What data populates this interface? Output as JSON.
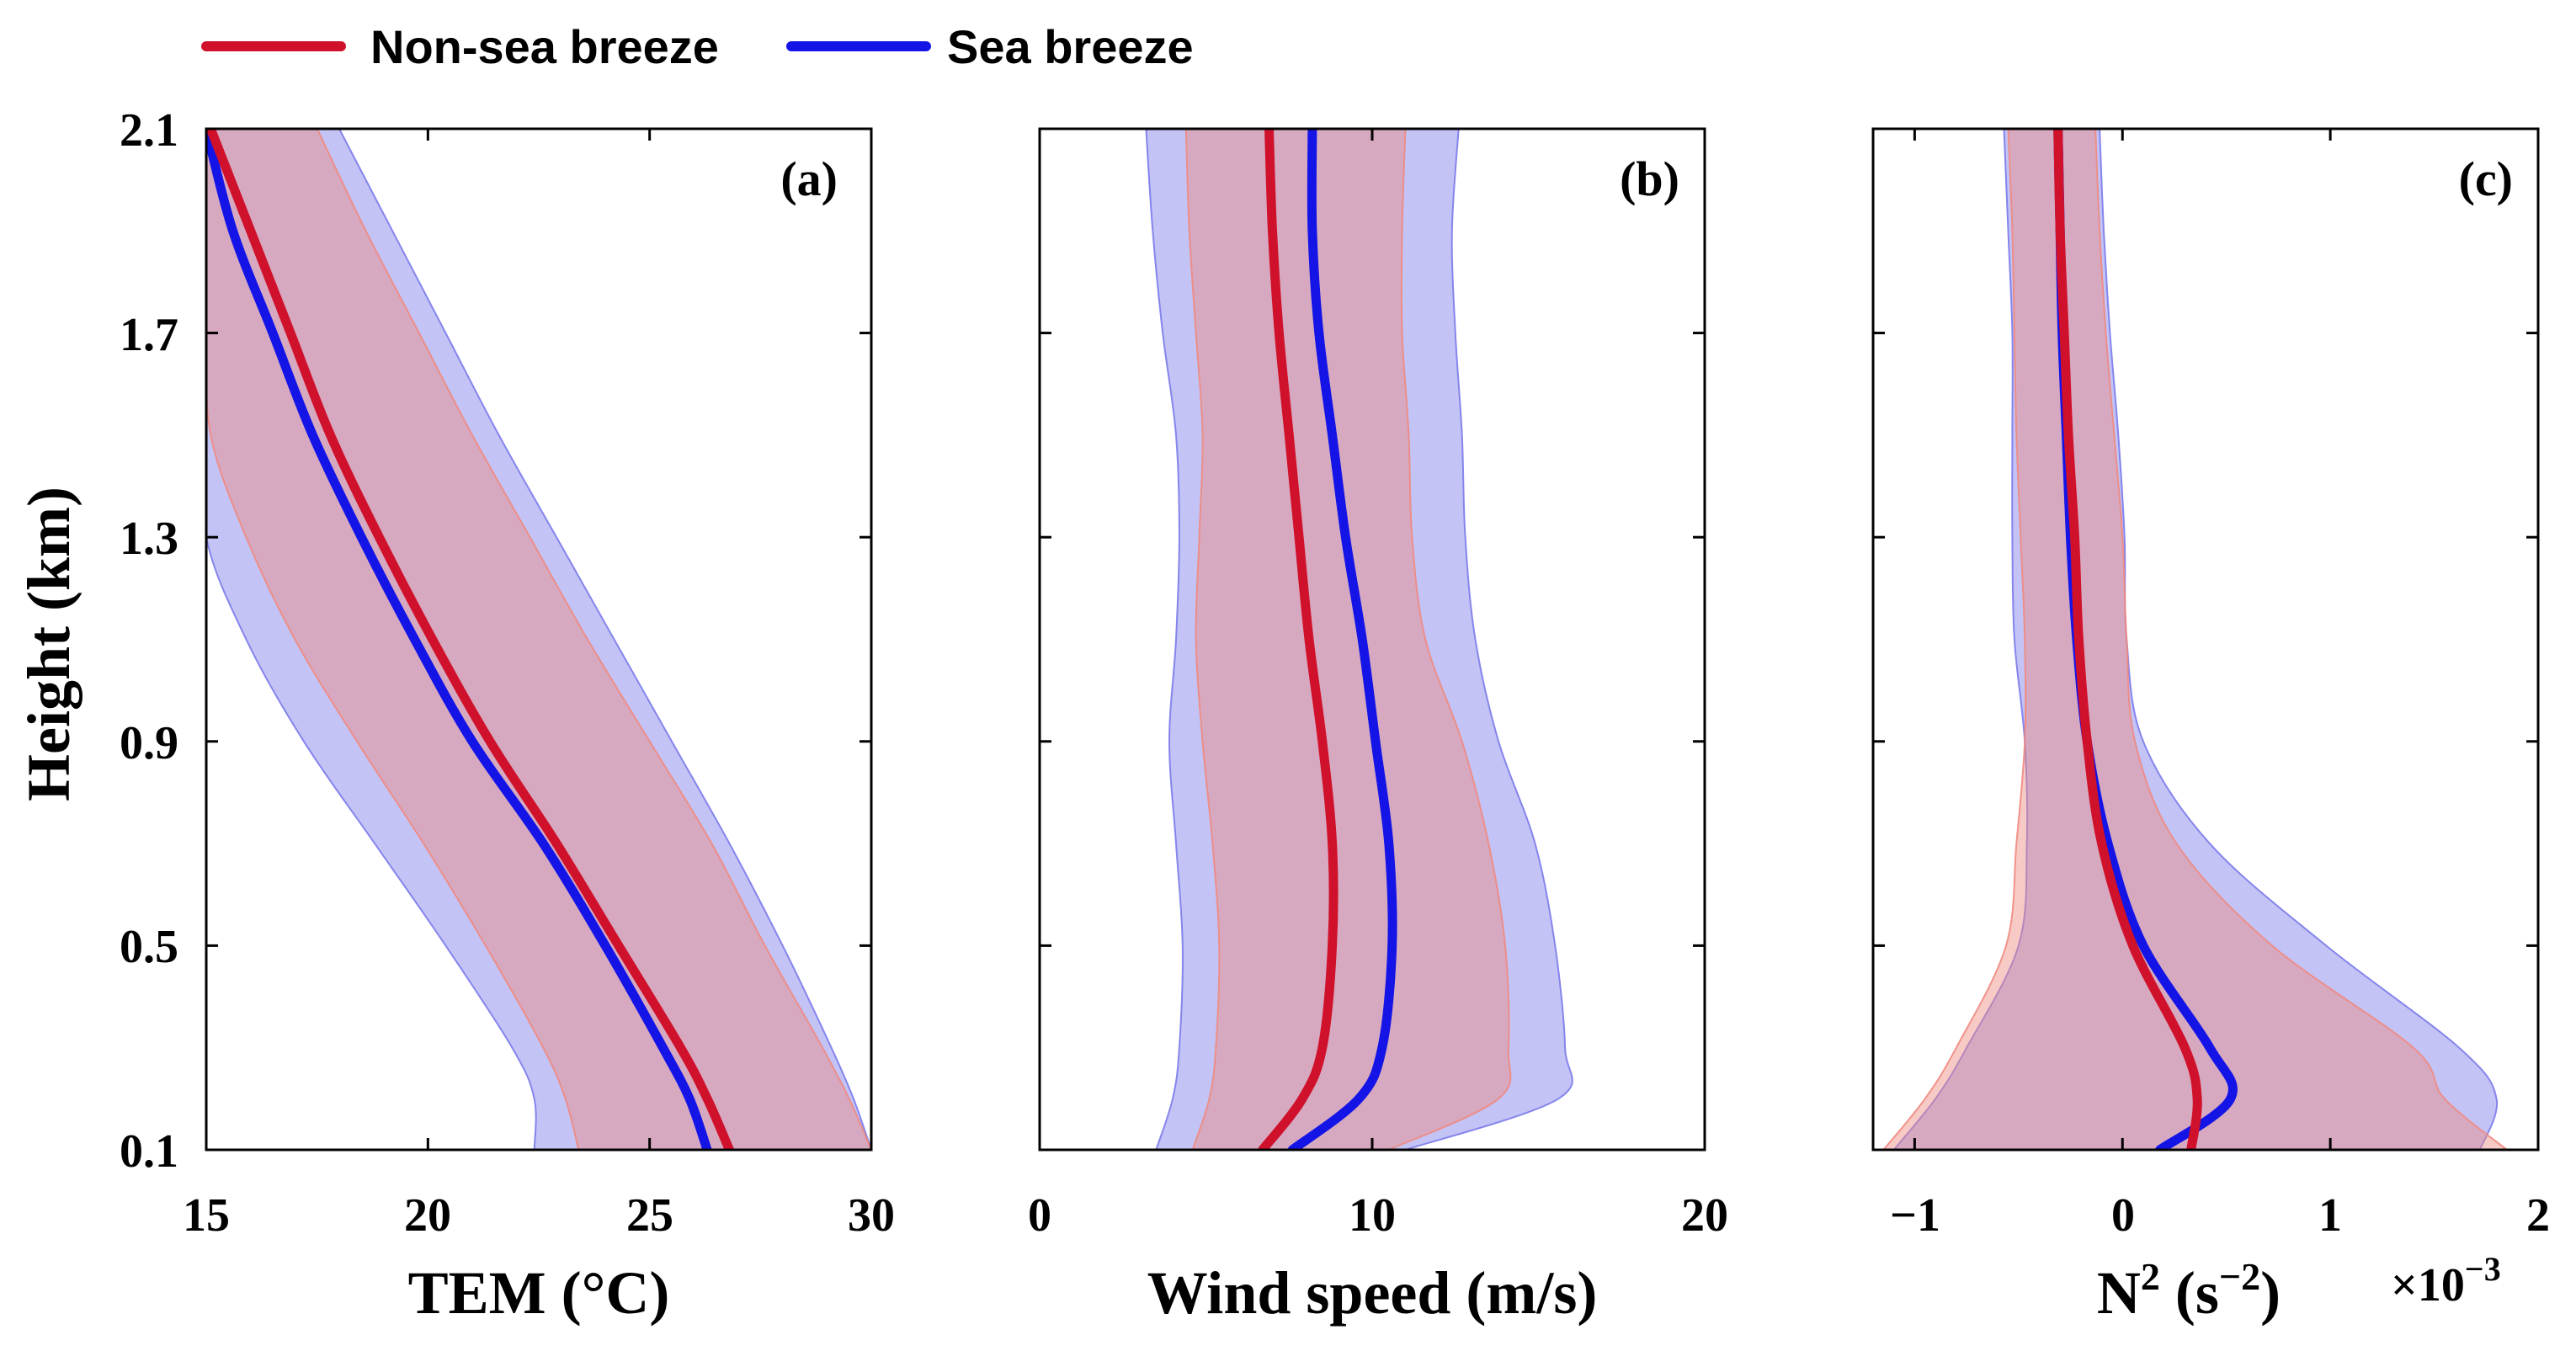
{
  "legend": [
    {
      "name": "Non-sea breeze",
      "color": "#d0112b"
    },
    {
      "name": "Sea breeze",
      "color": "#1414e6"
    }
  ],
  "colors": {
    "nonsea_fill": "#f08a80",
    "sea_fill": "#7b7bea"
  },
  "shared_axis": {
    "ylabel": "Height (km)",
    "ylim": [
      0.1,
      2.1
    ],
    "yticks": [
      0.1,
      0.5,
      0.9,
      1.3,
      1.7,
      2.1
    ],
    "ytick_labels": [
      "0.1",
      "0.5",
      "0.9",
      "1.3",
      "1.7",
      "2.1"
    ]
  },
  "chart_data": [
    {
      "type": "line",
      "panel": "(a)",
      "xlabel": "TEM (°C)",
      "xlim": [
        15,
        30
      ],
      "xticks": [
        15,
        20,
        25,
        30
      ],
      "xtick_labels": [
        "15",
        "20",
        "25",
        "30"
      ],
      "height": [
        0.1,
        0.2,
        0.3,
        0.5,
        0.7,
        0.9,
        1.1,
        1.3,
        1.5,
        1.7,
        1.9,
        2.1
      ],
      "series": [
        {
          "name": "Non-sea breeze",
          "mean": [
            26.8,
            26.3,
            25.7,
            24.3,
            22.9,
            21.4,
            20.1,
            18.9,
            17.8,
            16.9,
            16.0,
            15.1
          ],
          "lower": [
            23.4,
            23.1,
            22.6,
            21.3,
            19.9,
            18.4,
            17.0,
            15.9,
            15.1,
            15.0,
            15.0,
            15.0
          ],
          "upper": [
            30.0,
            29.5,
            28.9,
            27.6,
            26.4,
            25.0,
            23.6,
            22.3,
            21.0,
            19.8,
            18.6,
            17.5
          ]
        },
        {
          "name": "Sea breeze",
          "mean": [
            26.3,
            25.9,
            25.3,
            24.0,
            22.6,
            21.0,
            19.7,
            18.5,
            17.4,
            16.5,
            15.6,
            15.0
          ],
          "lower": [
            22.4,
            22.4,
            21.9,
            20.4,
            18.8,
            17.2,
            15.9,
            15.0,
            15.0,
            15.0,
            15.0,
            15.0
          ],
          "upper": [
            30.0,
            29.6,
            29.1,
            28.0,
            26.8,
            25.5,
            24.2,
            22.9,
            21.6,
            20.4,
            19.2,
            18.0
          ]
        }
      ]
    },
    {
      "type": "line",
      "panel": "(b)",
      "xlabel": "Wind speed (m/s)",
      "xlim": [
        0,
        20
      ],
      "xticks": [
        0,
        10,
        20
      ],
      "xtick_labels": [
        "0",
        "10",
        "20"
      ],
      "height": [
        0.1,
        0.2,
        0.3,
        0.5,
        0.7,
        0.9,
        1.1,
        1.3,
        1.5,
        1.7,
        1.9,
        2.1
      ],
      "series": [
        {
          "name": "Non-sea breeze",
          "mean": [
            6.7,
            7.9,
            8.5,
            8.8,
            8.8,
            8.5,
            8.1,
            7.8,
            7.5,
            7.2,
            7.0,
            6.9
          ],
          "lower": [
            4.6,
            5.1,
            5.3,
            5.4,
            5.2,
            4.9,
            4.7,
            4.8,
            4.9,
            4.7,
            4.5,
            4.4
          ],
          "upper": [
            10.5,
            13.8,
            14.1,
            14.0,
            13.5,
            12.7,
            11.6,
            11.2,
            11.1,
            10.9,
            10.9,
            11.0
          ]
        },
        {
          "name": "Sea breeze",
          "mean": [
            7.6,
            9.6,
            10.3,
            10.6,
            10.5,
            10.1,
            9.7,
            9.2,
            8.8,
            8.4,
            8.2,
            8.2
          ],
          "lower": [
            3.5,
            4.0,
            4.2,
            4.3,
            4.1,
            3.9,
            4.1,
            4.2,
            4.1,
            3.7,
            3.4,
            3.2
          ],
          "upper": [
            11.0,
            15.6,
            15.8,
            15.5,
            14.9,
            13.8,
            13.1,
            12.8,
            12.7,
            12.5,
            12.4,
            12.6
          ]
        }
      ]
    },
    {
      "type": "line",
      "panel": "(c)",
      "xlabel": "N2 (s-2)",
      "xlim": [
        -1.2,
        2.0
      ],
      "xticks": [
        -1,
        0,
        1,
        2
      ],
      "xtick_labels": [
        "−1",
        "0",
        "1",
        "2"
      ],
      "x_multiplier": "×10",
      "x_multiplier_exp": "−3",
      "height": [
        0.1,
        0.2,
        0.3,
        0.5,
        0.7,
        0.9,
        1.1,
        1.3,
        1.5,
        1.7,
        1.9,
        2.1
      ],
      "series": [
        {
          "name": "Non-sea breeze",
          "mean": [
            0.33,
            0.36,
            0.3,
            0.05,
            -0.1,
            -0.17,
            -0.21,
            -0.23,
            -0.26,
            -0.28,
            -0.3,
            -0.31
          ],
          "lower": [
            -1.15,
            -0.95,
            -0.8,
            -0.56,
            -0.51,
            -0.47,
            -0.47,
            -0.49,
            -0.51,
            -0.52,
            -0.53,
            -0.55
          ],
          "upper": [
            1.85,
            1.55,
            1.4,
            0.72,
            0.26,
            0.06,
            0.02,
            0.0,
            -0.04,
            -0.08,
            -0.11,
            -0.13
          ]
        },
        {
          "name": "Sea breeze",
          "mean": [
            0.18,
            0.52,
            0.42,
            0.1,
            -0.07,
            -0.17,
            -0.22,
            -0.25,
            -0.27,
            -0.29,
            -0.3,
            -0.31
          ],
          "lower": [
            -1.1,
            -0.9,
            -0.75,
            -0.5,
            -0.46,
            -0.47,
            -0.52,
            -0.53,
            -0.53,
            -0.53,
            -0.55,
            -0.57
          ],
          "upper": [
            1.72,
            1.8,
            1.62,
            0.98,
            0.42,
            0.1,
            0.02,
            0.01,
            -0.02,
            -0.06,
            -0.09,
            -0.11
          ]
        }
      ]
    }
  ]
}
